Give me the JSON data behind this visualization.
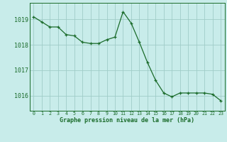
{
  "x": [
    0,
    1,
    2,
    3,
    4,
    5,
    6,
    7,
    8,
    9,
    10,
    11,
    12,
    13,
    14,
    15,
    16,
    17,
    18,
    19,
    20,
    21,
    22,
    23
  ],
  "y": [
    1019.1,
    1018.9,
    1018.7,
    1018.7,
    1018.4,
    1018.35,
    1018.1,
    1018.05,
    1018.05,
    1018.2,
    1018.3,
    1019.3,
    1018.85,
    1018.1,
    1017.3,
    1016.6,
    1016.1,
    1015.95,
    1016.1,
    1016.1,
    1016.1,
    1016.1,
    1016.05,
    1015.8
  ],
  "line_color": "#1a6b2a",
  "marker_color": "#1a6b2a",
  "bg_color": "#c8ecea",
  "grid_color": "#a0ccc8",
  "xlabel": "Graphe pression niveau de la mer (hPa)",
  "xlabel_color": "#1a6b2a",
  "tick_color": "#1a6b2a",
  "axis_color": "#1a6b2a",
  "ylim_min": 1015.4,
  "ylim_max": 1019.65,
  "yticks": [
    1016,
    1017,
    1018,
    1019
  ],
  "xticks": [
    0,
    1,
    2,
    3,
    4,
    5,
    6,
    7,
    8,
    9,
    10,
    11,
    12,
    13,
    14,
    15,
    16,
    17,
    18,
    19,
    20,
    21,
    22,
    23
  ]
}
